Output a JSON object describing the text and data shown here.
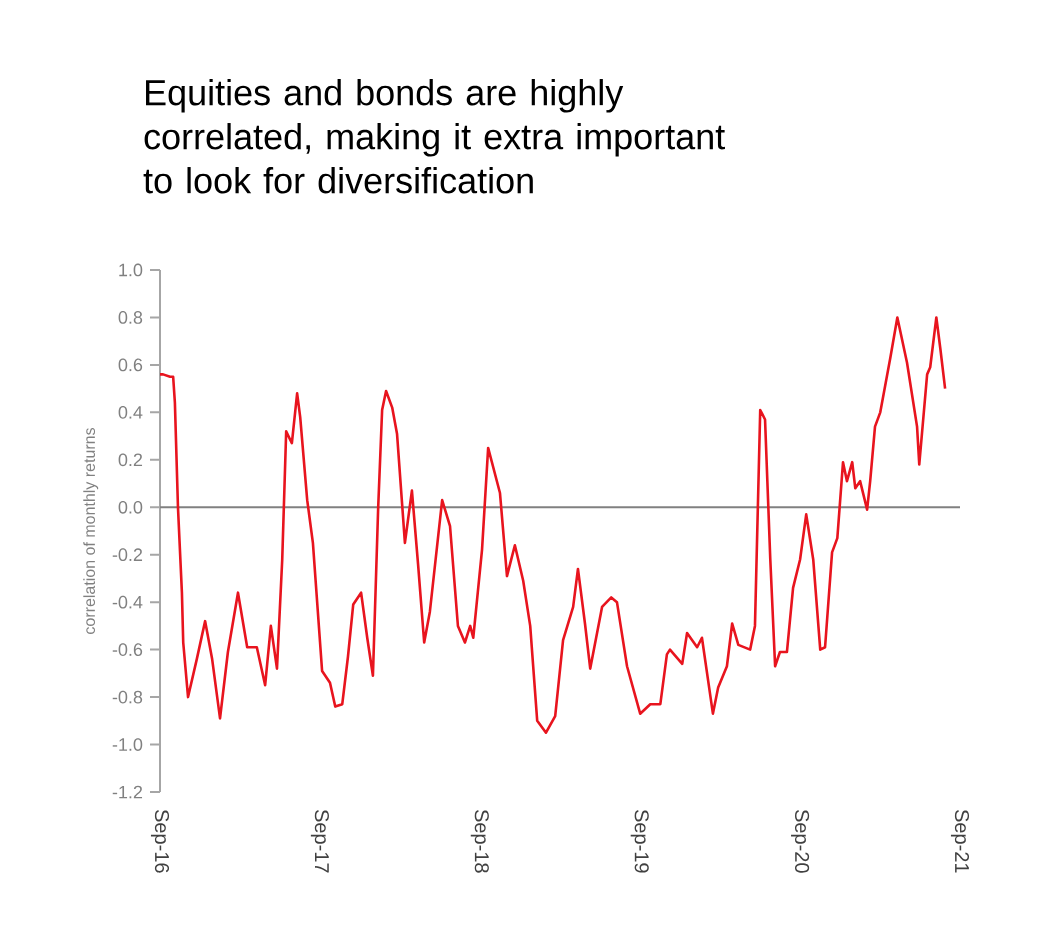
{
  "chart_data": {
    "type": "line",
    "title": "Equities and bonds are highly correlated, making it extra important to look for diversification",
    "ylabel": "correlation of monthly returns",
    "x": [
      "2016-09-01",
      "2016-09-08",
      "2016-09-24",
      "2016-10-01",
      "2016-10-05",
      "2016-10-12",
      "2016-10-21",
      "2016-10-24",
      "2016-11-04",
      "2016-11-24",
      "2016-12-13",
      "2016-12-29",
      "2017-01-16",
      "2017-02-03",
      "2017-02-26",
      "2017-03-19",
      "2017-04-10",
      "2017-04-29",
      "2017-05-12",
      "2017-05-26",
      "2017-06-07",
      "2017-06-16",
      "2017-06-29",
      "2017-07-11",
      "2017-07-18",
      "2017-08-03",
      "2017-08-16",
      "2017-09-06",
      "2017-09-24",
      "2017-10-06",
      "2017-10-22",
      "2017-11-04",
      "2017-11-16",
      "2017-12-04",
      "2017-12-18",
      "2017-12-31",
      "2018-01-12",
      "2018-01-21",
      "2018-01-30",
      "2018-02-13",
      "2018-02-24",
      "2018-03-14",
      "2018-03-30",
      "2018-04-13",
      "2018-04-27",
      "2018-05-10",
      "2018-06-07",
      "2018-06-25",
      "2018-07-13",
      "2018-07-29",
      "2018-08-10",
      "2018-08-17",
      "2018-09-06",
      "2018-09-20",
      "2018-10-17",
      "2018-11-02",
      "2018-11-20",
      "2018-12-09",
      "2018-12-25",
      "2019-01-10",
      "2019-01-30",
      "2019-02-20",
      "2019-03-10",
      "2019-04-02",
      "2019-04-13",
      "2019-04-29",
      "2019-05-11",
      "2019-06-07",
      "2019-06-28",
      "2019-07-11",
      "2019-08-03",
      "2019-09-02",
      "2019-09-25",
      "2019-10-18",
      "2019-11-02",
      "2019-11-09",
      "2019-12-07",
      "2019-12-18",
      "2020-01-10",
      "2020-01-21",
      "2020-02-15",
      "2020-02-27",
      "2020-03-18",
      "2020-03-30",
      "2020-04-13",
      "2020-05-10",
      "2020-05-21",
      "2020-06-02",
      "2020-06-13",
      "2020-06-25",
      "2020-07-06",
      "2020-07-17",
      "2020-08-02",
      "2020-08-16",
      "2020-09-01",
      "2020-09-15",
      "2020-10-01",
      "2020-10-17",
      "2020-10-28",
      "2020-11-13",
      "2020-11-25",
      "2020-12-08",
      "2020-12-17",
      "2020-12-29",
      "2021-01-05",
      "2021-01-16",
      "2021-02-01",
      "2021-02-08",
      "2021-02-19",
      "2021-03-03",
      "2021-03-26",
      "2021-04-11",
      "2021-05-03",
      "2021-05-26",
      "2021-05-31",
      "2021-06-18",
      "2021-06-25",
      "2021-07-09",
      "2021-07-18",
      "2021-07-29"
    ],
    "series": [
      {
        "color": "#e8141e",
        "values": [
          0.56,
          0.56,
          0.55,
          0.55,
          0.44,
          0.0,
          -0.36,
          -0.57,
          -0.8,
          -0.64,
          -0.48,
          -0.64,
          -0.89,
          -0.61,
          -0.36,
          -0.59,
          -0.59,
          -0.75,
          -0.5,
          -0.68,
          -0.22,
          0.32,
          0.27,
          0.48,
          0.38,
          0.03,
          -0.15,
          -0.69,
          -0.74,
          -0.84,
          -0.83,
          -0.63,
          -0.41,
          -0.36,
          -0.55,
          -0.71,
          0.0,
          0.41,
          0.49,
          0.42,
          0.31,
          -0.15,
          0.07,
          -0.24,
          -0.57,
          -0.44,
          0.03,
          -0.08,
          -0.5,
          -0.57,
          -0.5,
          -0.55,
          -0.18,
          0.25,
          0.06,
          -0.29,
          -0.16,
          -0.31,
          -0.5,
          -0.9,
          -0.95,
          -0.88,
          -0.56,
          -0.42,
          -0.26,
          -0.49,
          -0.68,
          -0.42,
          -0.38,
          -0.4,
          -0.67,
          -0.87,
          -0.83,
          -0.83,
          -0.62,
          -0.6,
          -0.66,
          -0.53,
          -0.59,
          -0.55,
          -0.87,
          -0.76,
          -0.67,
          -0.49,
          -0.58,
          -0.6,
          -0.5,
          0.41,
          0.37,
          -0.22,
          -0.67,
          -0.61,
          -0.61,
          -0.34,
          -0.22,
          -0.03,
          -0.22,
          -0.6,
          -0.59,
          -0.19,
          -0.13,
          0.19,
          0.11,
          0.19,
          0.08,
          0.11,
          -0.01,
          0.11,
          0.34,
          0.4,
          0.63,
          0.8,
          0.61,
          0.34,
          0.18,
          0.56,
          0.59,
          0.8,
          0.67,
          0.5
        ]
      }
    ],
    "xlim": [
      "2016-09-01",
      "2021-09-01"
    ],
    "xticks": [
      {
        "value": "2016-09-01",
        "label": "Sep-16"
      },
      {
        "value": "2017-09-01",
        "label": "Sep-17"
      },
      {
        "value": "2018-09-01",
        "label": "Sep-18"
      },
      {
        "value": "2019-09-01",
        "label": "Sep-19"
      },
      {
        "value": "2020-09-01",
        "label": "Sep-20"
      },
      {
        "value": "2021-09-01",
        "label": "Sep-21"
      }
    ],
    "ylim": [
      -1.2,
      1.0
    ],
    "yticks": [
      {
        "value": -1.2,
        "label": "-1.2"
      },
      {
        "value": -1.0,
        "label": "-1.0"
      },
      {
        "value": -0.8,
        "label": "-0.8"
      },
      {
        "value": -0.6,
        "label": "-0.6"
      },
      {
        "value": -0.4,
        "label": "-0.4"
      },
      {
        "value": -0.2,
        "label": "-0.2"
      },
      {
        "value": 0.0,
        "label": "0.0"
      },
      {
        "value": 0.2,
        "label": "0.2"
      },
      {
        "value": 0.4,
        "label": "0.4"
      },
      {
        "value": 0.6,
        "label": "0.6"
      },
      {
        "value": 0.8,
        "label": "0.8"
      },
      {
        "value": 1.0,
        "label": "1.0"
      }
    ],
    "ref_lines": [
      {
        "axis": "y",
        "value": 0,
        "color": "#808080"
      }
    ]
  }
}
